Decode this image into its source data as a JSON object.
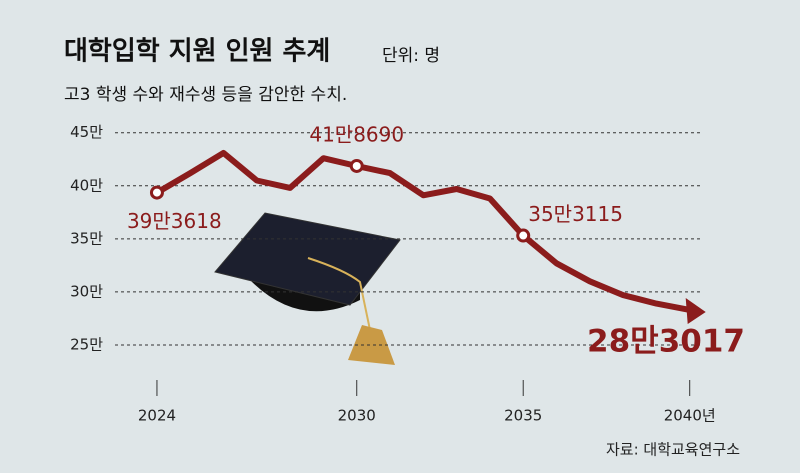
{
  "chart_data": {
    "type": "line",
    "title": "대학입학 지원 인원 추계",
    "unit_note": "단위: 명",
    "subtitle": "고3 학생 수와 재수생 등을 감안한 수치.",
    "source": "자료: 대학교육연구소",
    "x": [
      2024,
      2025,
      2026,
      2027,
      2028,
      2029,
      2030,
      2031,
      2032,
      2033,
      2034,
      2035,
      2036,
      2037,
      2038,
      2039,
      2040
    ],
    "values": [
      39.3618,
      41.2,
      43.1,
      40.5,
      39.8,
      42.6,
      41.869,
      41.2,
      39.1,
      39.7,
      38.8,
      35.3115,
      32.7,
      31.0,
      29.7,
      28.9,
      28.3017
    ],
    "value_labels": [
      "39만3618",
      null,
      null,
      null,
      null,
      null,
      "41만8690",
      null,
      null,
      null,
      null,
      "35만3115",
      null,
      null,
      null,
      null,
      "28만3017"
    ],
    "color": "#8b1c1c",
    "xlim": [
      2022.74,
      2041
    ],
    "xticks": [
      2024,
      2030,
      2035,
      {
        "value": 2040,
        "label": "2040년"
      }
    ],
    "ylim": [
      21.7,
      46.2
    ],
    "yticks": [
      {
        "value": 25,
        "label": "25만"
      },
      {
        "value": 30,
        "label": "30만"
      },
      {
        "value": 35,
        "label": "35만"
      },
      {
        "value": 40,
        "label": "40만"
      },
      {
        "value": 45,
        "label": "45만"
      }
    ],
    "grid": true
  }
}
